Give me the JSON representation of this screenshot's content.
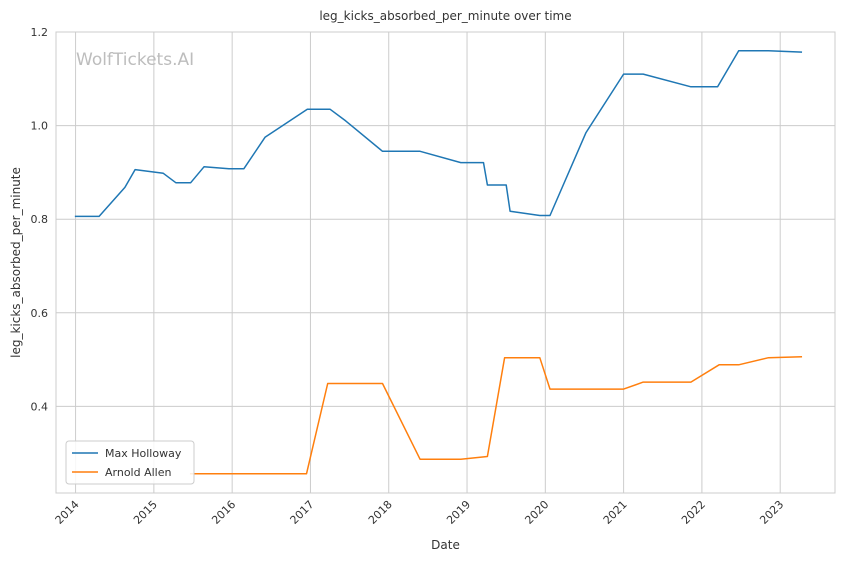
{
  "chart_data": {
    "type": "line",
    "title": "leg_kicks_absorbed_per_minute over time",
    "xlabel": "Date",
    "ylabel": "leg_kicks_absorbed_per_minute",
    "watermark": "WolfTickets.AI",
    "grid": true,
    "legend_position": "lower-left",
    "xlim": [
      2013.75,
      2023.7
    ],
    "ylim": [
      0.215,
      1.2
    ],
    "x_ticks": [
      {
        "value": 2014,
        "label": "2014"
      },
      {
        "value": 2015,
        "label": "2015"
      },
      {
        "value": 2016,
        "label": "2016"
      },
      {
        "value": 2017,
        "label": "2017"
      },
      {
        "value": 2018,
        "label": "2018"
      },
      {
        "value": 2019,
        "label": "2019"
      },
      {
        "value": 2020,
        "label": "2020"
      },
      {
        "value": 2021,
        "label": "2021"
      },
      {
        "value": 2022,
        "label": "2022"
      },
      {
        "value": 2023,
        "label": "2023"
      }
    ],
    "y_ticks": [
      {
        "value": 0.4,
        "label": "0.4"
      },
      {
        "value": 0.6,
        "label": "0.6"
      },
      {
        "value": 0.8,
        "label": "0.8"
      },
      {
        "value": 1.0,
        "label": "1.0"
      },
      {
        "value": 1.2,
        "label": "1.2"
      }
    ],
    "series": [
      {
        "name": "Max Holloway",
        "color": "#1f77b4",
        "points": [
          [
            2014.0,
            0.806
          ],
          [
            2014.3,
            0.806
          ],
          [
            2014.63,
            0.868
          ],
          [
            2014.76,
            0.906
          ],
          [
            2015.12,
            0.898
          ],
          [
            2015.28,
            0.878
          ],
          [
            2015.47,
            0.878
          ],
          [
            2015.64,
            0.912
          ],
          [
            2015.96,
            0.908
          ],
          [
            2016.15,
            0.908
          ],
          [
            2016.42,
            0.975
          ],
          [
            2016.96,
            1.035
          ],
          [
            2017.25,
            1.035
          ],
          [
            2017.45,
            1.01
          ],
          [
            2017.92,
            0.945
          ],
          [
            2018.4,
            0.945
          ],
          [
            2018.92,
            0.921
          ],
          [
            2019.21,
            0.921
          ],
          [
            2019.26,
            0.873
          ],
          [
            2019.5,
            0.873
          ],
          [
            2019.55,
            0.817
          ],
          [
            2019.93,
            0.808
          ],
          [
            2020.06,
            0.808
          ],
          [
            2020.52,
            0.985
          ],
          [
            2021.0,
            1.11
          ],
          [
            2021.25,
            1.11
          ],
          [
            2021.86,
            1.083
          ],
          [
            2022.2,
            1.083
          ],
          [
            2022.47,
            1.16
          ],
          [
            2022.85,
            1.16
          ],
          [
            2023.27,
            1.157
          ]
        ]
      },
      {
        "name": "Arnold Allen",
        "color": "#ff7f0e",
        "points": [
          [
            2015.47,
            0.256
          ],
          [
            2016.95,
            0.256
          ],
          [
            2017.22,
            0.449
          ],
          [
            2017.92,
            0.449
          ],
          [
            2018.4,
            0.287
          ],
          [
            2018.92,
            0.287
          ],
          [
            2019.26,
            0.293
          ],
          [
            2019.48,
            0.504
          ],
          [
            2019.93,
            0.504
          ],
          [
            2020.06,
            0.437
          ],
          [
            2021.0,
            0.437
          ],
          [
            2021.25,
            0.452
          ],
          [
            2021.86,
            0.452
          ],
          [
            2022.22,
            0.489
          ],
          [
            2022.47,
            0.489
          ],
          [
            2022.85,
            0.504
          ],
          [
            2023.27,
            0.506
          ]
        ]
      }
    ]
  }
}
